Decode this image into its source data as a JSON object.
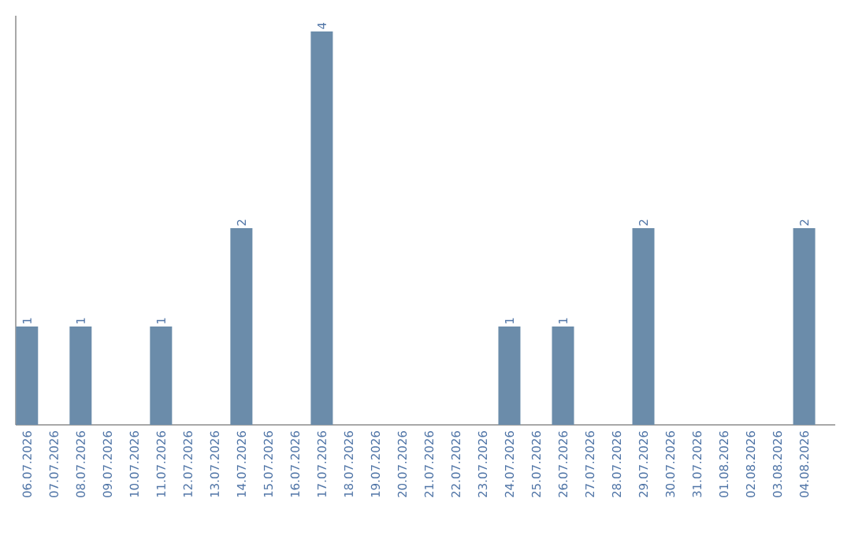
{
  "chart_data": {
    "type": "bar",
    "categories": [
      "06.07.2026",
      "07.07.2026",
      "08.07.2026",
      "09.07.2026",
      "10.07.2026",
      "11.07.2026",
      "12.07.2026",
      "13.07.2026",
      "14.07.2026",
      "15.07.2026",
      "16.07.2026",
      "17.07.2026",
      "18.07.2026",
      "19.07.2026",
      "20.07.2026",
      "21.07.2026",
      "22.07.2026",
      "23.07.2026",
      "24.07.2026",
      "25.07.2026",
      "26.07.2026",
      "27.07.2026",
      "28.07.2026",
      "29.07.2026",
      "30.07.2026",
      "31.07.2026",
      "01.08.2026",
      "02.08.2026",
      "03.08.2026",
      "04.08.2026"
    ],
    "values": [
      1,
      0,
      1,
      0,
      0,
      1,
      0,
      0,
      2,
      0,
      0,
      4,
      0,
      0,
      0,
      0,
      0,
      0,
      1,
      0,
      1,
      0,
      0,
      2,
      0,
      0,
      0,
      0,
      0,
      2
    ],
    "value_labels": [
      "1",
      null,
      "1",
      null,
      null,
      "1",
      null,
      null,
      "2",
      null,
      null,
      "4",
      null,
      null,
      null,
      null,
      null,
      null,
      "1",
      null,
      "1",
      null,
      null,
      "2",
      null,
      null,
      null,
      null,
      null,
      "2"
    ],
    "color": "#6b8caa",
    "grid": false,
    "tick_labels": "x"
  }
}
